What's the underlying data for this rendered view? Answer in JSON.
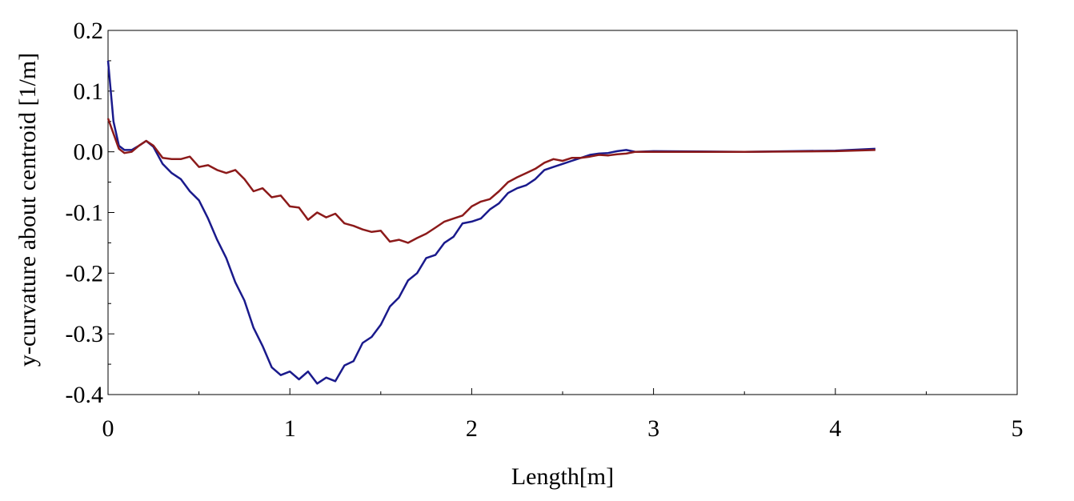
{
  "chart_data": {
    "type": "line",
    "title": "",
    "xlabel": "Length[m]",
    "ylabel": "y-curvature about centroid [1/m]",
    "xlim": [
      0,
      5
    ],
    "ylim": [
      -0.4,
      0.2
    ],
    "x_ticks": [
      "0",
      "1",
      "2",
      "3",
      "4",
      "5"
    ],
    "y_ticks": [
      "0.2",
      "0.1",
      "0.0",
      "-0.1",
      "-0.2",
      "-0.3",
      "-0.4"
    ],
    "grid": false,
    "legend": "none",
    "series": [
      {
        "color": "#1a1a8c",
        "points": [
          [
            0.0,
            0.15
          ],
          [
            0.03,
            0.05
          ],
          [
            0.06,
            0.01
          ],
          [
            0.09,
            0.003
          ],
          [
            0.13,
            0.003
          ],
          [
            0.17,
            0.01
          ],
          [
            0.21,
            0.018
          ],
          [
            0.25,
            0.008
          ],
          [
            0.3,
            -0.02
          ],
          [
            0.35,
            -0.035
          ],
          [
            0.4,
            -0.045
          ],
          [
            0.45,
            -0.065
          ],
          [
            0.5,
            -0.08
          ],
          [
            0.55,
            -0.11
          ],
          [
            0.6,
            -0.145
          ],
          [
            0.65,
            -0.175
          ],
          [
            0.7,
            -0.215
          ],
          [
            0.75,
            -0.245
          ],
          [
            0.8,
            -0.29
          ],
          [
            0.85,
            -0.32
          ],
          [
            0.9,
            -0.355
          ],
          [
            0.95,
            -0.368
          ],
          [
            1.0,
            -0.362
          ],
          [
            1.05,
            -0.375
          ],
          [
            1.1,
            -0.362
          ],
          [
            1.15,
            -0.382
          ],
          [
            1.2,
            -0.372
          ],
          [
            1.25,
            -0.378
          ],
          [
            1.3,
            -0.352
          ],
          [
            1.35,
            -0.345
          ],
          [
            1.4,
            -0.315
          ],
          [
            1.45,
            -0.305
          ],
          [
            1.5,
            -0.285
          ],
          [
            1.55,
            -0.255
          ],
          [
            1.6,
            -0.24
          ],
          [
            1.65,
            -0.212
          ],
          [
            1.7,
            -0.2
          ],
          [
            1.75,
            -0.175
          ],
          [
            1.8,
            -0.17
          ],
          [
            1.85,
            -0.15
          ],
          [
            1.9,
            -0.14
          ],
          [
            1.95,
            -0.118
          ],
          [
            2.0,
            -0.115
          ],
          [
            2.05,
            -0.11
          ],
          [
            2.1,
            -0.095
          ],
          [
            2.15,
            -0.085
          ],
          [
            2.2,
            -0.068
          ],
          [
            2.25,
            -0.06
          ],
          [
            2.3,
            -0.055
          ],
          [
            2.35,
            -0.045
          ],
          [
            2.4,
            -0.03
          ],
          [
            2.45,
            -0.025
          ],
          [
            2.5,
            -0.02
          ],
          [
            2.55,
            -0.015
          ],
          [
            2.6,
            -0.01
          ],
          [
            2.65,
            -0.005
          ],
          [
            2.7,
            -0.003
          ],
          [
            2.75,
            -0.002
          ],
          [
            2.8,
            0.001
          ],
          [
            2.85,
            0.003
          ],
          [
            2.9,
            0.0
          ],
          [
            3.0,
            0.001
          ],
          [
            3.5,
            0.0
          ],
          [
            4.0,
            0.002
          ],
          [
            4.22,
            0.005
          ]
        ]
      },
      {
        "color": "#8c1a1a",
        "points": [
          [
            0.0,
            0.055
          ],
          [
            0.03,
            0.03
          ],
          [
            0.06,
            0.005
          ],
          [
            0.09,
            -0.002
          ],
          [
            0.13,
            0.0
          ],
          [
            0.17,
            0.01
          ],
          [
            0.21,
            0.018
          ],
          [
            0.25,
            0.01
          ],
          [
            0.3,
            -0.01
          ],
          [
            0.35,
            -0.012
          ],
          [
            0.4,
            -0.012
          ],
          [
            0.45,
            -0.008
          ],
          [
            0.5,
            -0.025
          ],
          [
            0.55,
            -0.022
          ],
          [
            0.6,
            -0.03
          ],
          [
            0.65,
            -0.035
          ],
          [
            0.7,
            -0.03
          ],
          [
            0.75,
            -0.045
          ],
          [
            0.8,
            -0.065
          ],
          [
            0.85,
            -0.06
          ],
          [
            0.9,
            -0.075
          ],
          [
            0.95,
            -0.072
          ],
          [
            1.0,
            -0.09
          ],
          [
            1.05,
            -0.092
          ],
          [
            1.1,
            -0.112
          ],
          [
            1.15,
            -0.1
          ],
          [
            1.2,
            -0.108
          ],
          [
            1.25,
            -0.102
          ],
          [
            1.3,
            -0.118
          ],
          [
            1.35,
            -0.122
          ],
          [
            1.4,
            -0.128
          ],
          [
            1.45,
            -0.132
          ],
          [
            1.5,
            -0.13
          ],
          [
            1.55,
            -0.148
          ],
          [
            1.6,
            -0.145
          ],
          [
            1.65,
            -0.15
          ],
          [
            1.7,
            -0.142
          ],
          [
            1.75,
            -0.135
          ],
          [
            1.8,
            -0.125
          ],
          [
            1.85,
            -0.115
          ],
          [
            1.9,
            -0.11
          ],
          [
            1.95,
            -0.105
          ],
          [
            2.0,
            -0.09
          ],
          [
            2.05,
            -0.082
          ],
          [
            2.1,
            -0.078
          ],
          [
            2.15,
            -0.065
          ],
          [
            2.2,
            -0.05
          ],
          [
            2.25,
            -0.042
          ],
          [
            2.3,
            -0.035
          ],
          [
            2.35,
            -0.028
          ],
          [
            2.4,
            -0.018
          ],
          [
            2.45,
            -0.012
          ],
          [
            2.5,
            -0.015
          ],
          [
            2.55,
            -0.01
          ],
          [
            2.6,
            -0.01
          ],
          [
            2.65,
            -0.008
          ],
          [
            2.7,
            -0.005
          ],
          [
            2.75,
            -0.006
          ],
          [
            2.8,
            -0.004
          ],
          [
            2.85,
            -0.003
          ],
          [
            2.9,
            0.0
          ],
          [
            3.0,
            0.0
          ],
          [
            3.5,
            0.0
          ],
          [
            4.0,
            0.001
          ],
          [
            4.22,
            0.003
          ]
        ]
      }
    ]
  }
}
